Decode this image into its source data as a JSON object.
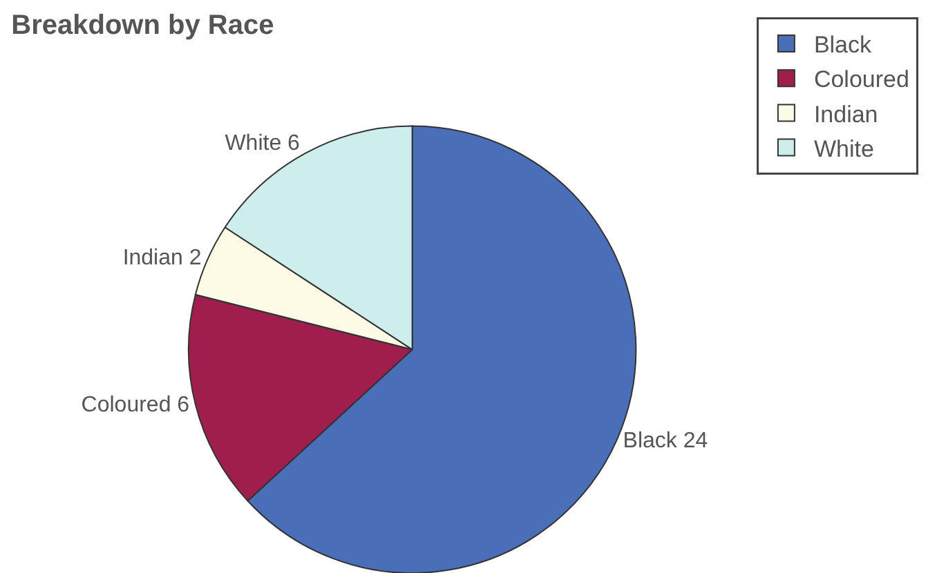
{
  "chart_data": {
    "type": "pie",
    "title": "Breakdown by Race",
    "categories": [
      "Black",
      "Coloured",
      "Indian",
      "White"
    ],
    "values": [
      24,
      6,
      2,
      6
    ],
    "colors": [
      "#4a6fb8",
      "#a01e4e",
      "#fdfbe6",
      "#cdeeed"
    ],
    "value_labels": [
      "Black 24",
      "Coloured 6",
      "Indian 2",
      "White 6"
    ],
    "legend": "top right"
  }
}
